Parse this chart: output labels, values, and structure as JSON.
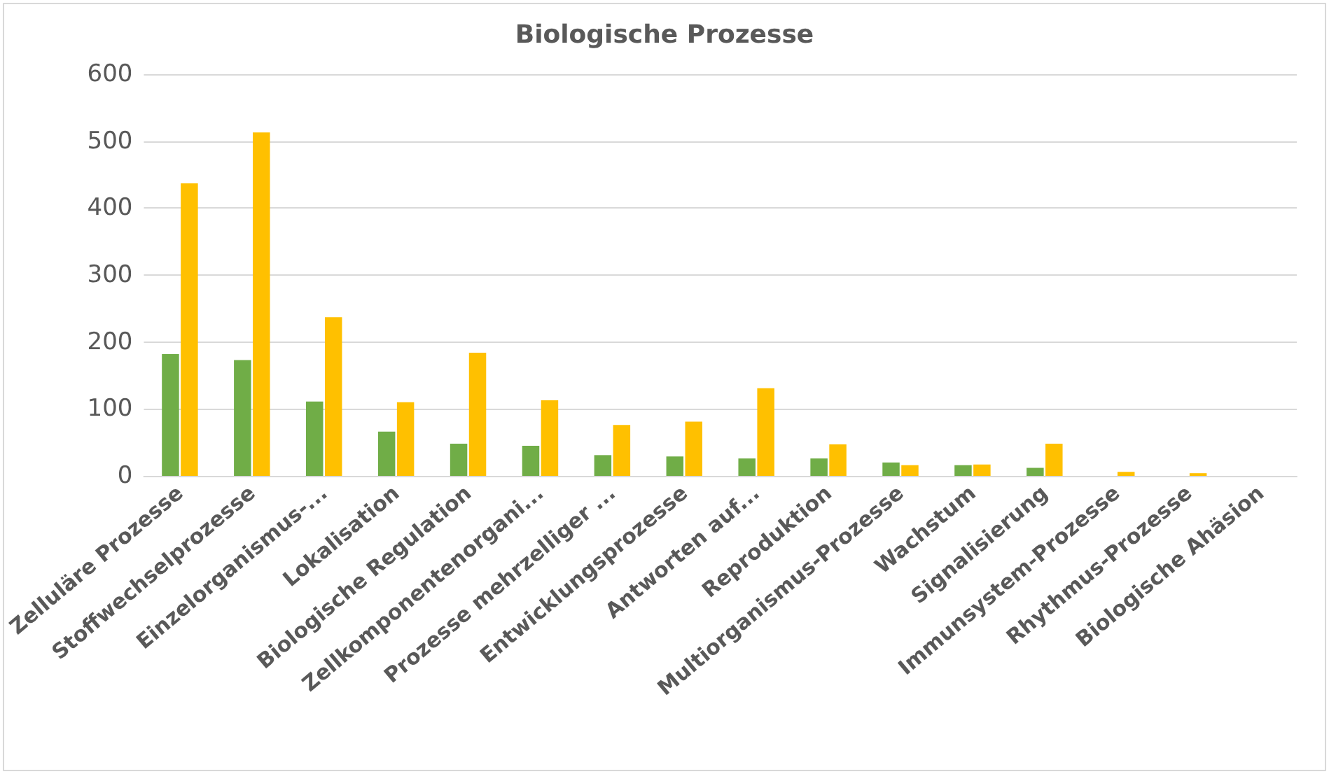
{
  "chart_data": {
    "type": "bar",
    "title": "Biologische Prozesse",
    "categories": [
      "Zelluläre Prozesse",
      "Stoffwechselprozesse",
      "Einzelorganismus-...",
      "Lokalisation",
      "Biologische Regulation",
      "Zellkomponentenorgani...",
      "Prozesse mehrzelliger ...",
      "Entwicklungsprozesse",
      "Antworten auf...",
      "Reproduktion",
      "Multiorganismus-Prozesse",
      "Wachstum",
      "Signalisierung",
      "Immunsystem-Prozesse",
      "Rhythmus-Prozesse",
      "Biologische Ahäsion"
    ],
    "series": [
      {
        "color": "#70ad47",
        "values": [
          182,
          173,
          111,
          66,
          48,
          45,
          31,
          29,
          26,
          26,
          20,
          16,
          12,
          0,
          0,
          0
        ]
      },
      {
        "color": "#ffc000",
        "values": [
          437,
          513,
          237,
          110,
          184,
          113,
          76,
          81,
          131,
          47,
          16,
          17,
          48,
          6,
          4,
          0
        ]
      }
    ],
    "ylim": [
      0,
      600
    ],
    "yticks": [
      0,
      100,
      200,
      300,
      400,
      500,
      600
    ],
    "grid": "y"
  }
}
